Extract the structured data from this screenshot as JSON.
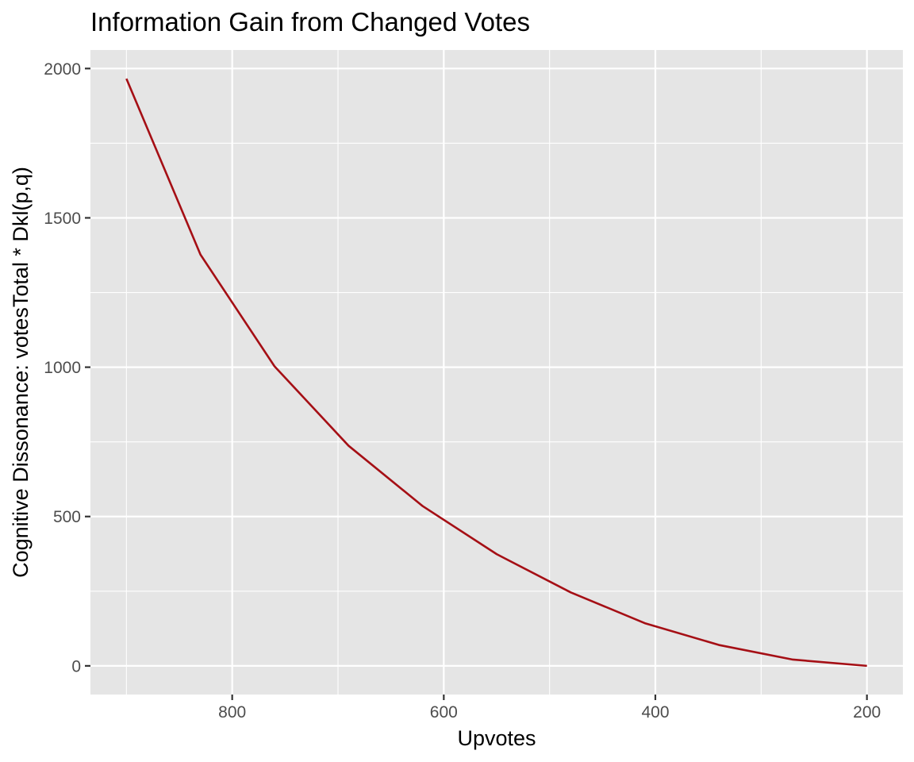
{
  "chart_data": {
    "type": "line",
    "title": "Information Gain from Changed Votes",
    "xlabel": "Upvotes",
    "ylabel": "Cognitive Dissonance: votesTotal * Dkl(p,q)",
    "x_reversed": true,
    "xlim": [
      934,
      166
    ],
    "ylim": [
      -96,
      2062
    ],
    "x_ticks": [
      800,
      600,
      400,
      200
    ],
    "x_tick_labels": [
      "800",
      "600",
      "400",
      "200"
    ],
    "x_minor_ticks": [
      900,
      700,
      500,
      300
    ],
    "y_ticks": [
      0,
      500,
      1000,
      1500,
      2000
    ],
    "y_tick_labels": [
      "0",
      "500",
      "1000",
      "1500",
      "2000"
    ],
    "y_minor_ticks": [
      250,
      750,
      1250,
      1750
    ],
    "grid": true,
    "legend": "none",
    "series": [
      {
        "color": "#a50f15",
        "x": [
          900,
          830,
          760,
          690,
          620,
          550,
          480,
          410,
          340,
          270,
          200
        ],
        "y": [
          1966,
          1377,
          1003,
          737,
          535,
          374,
          246,
          143,
          70,
          21,
          0
        ]
      }
    ]
  }
}
